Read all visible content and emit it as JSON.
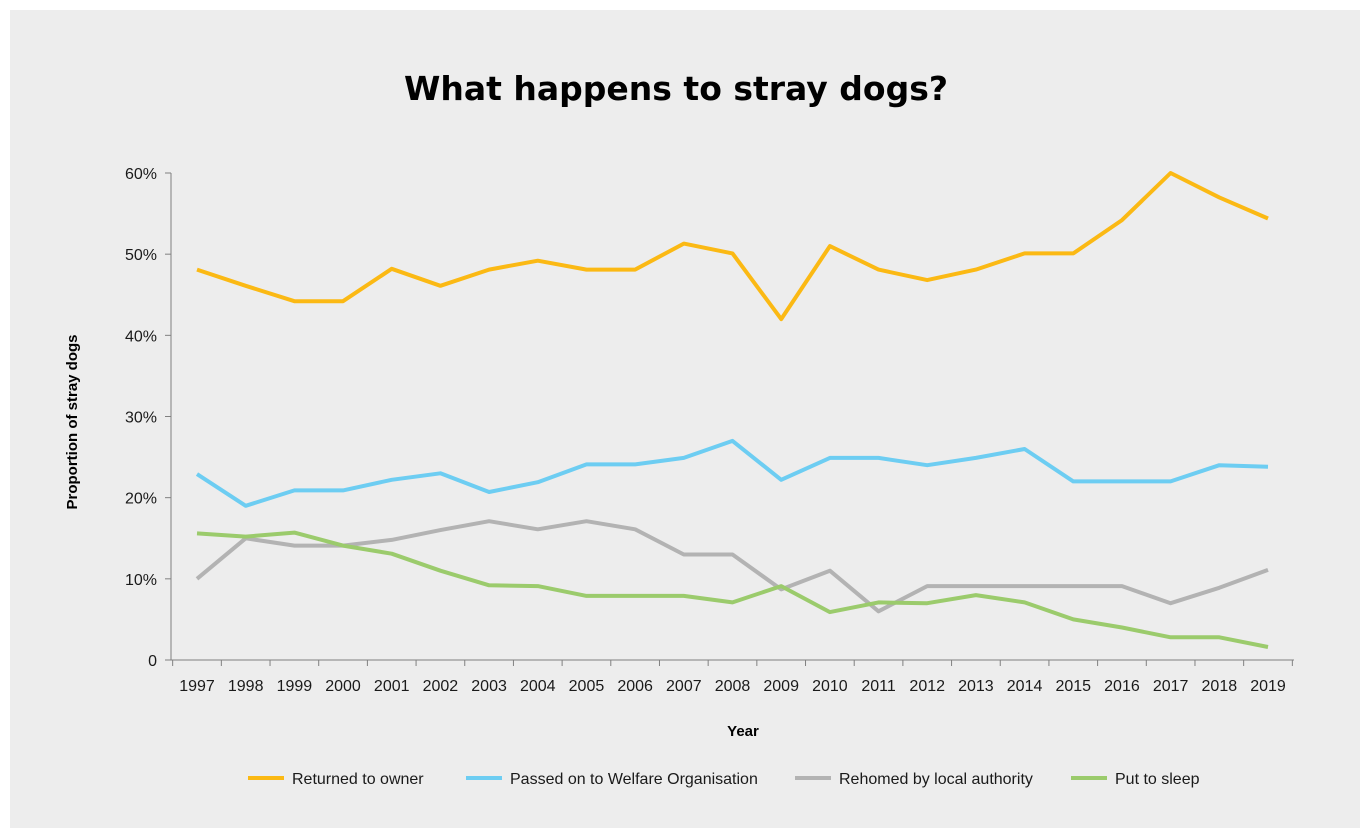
{
  "chart_data": {
    "type": "line",
    "title": "What happens to stray dogs?",
    "xlabel": "Year",
    "ylabel": "Proportion of stray dogs",
    "ylim": [
      0,
      60
    ],
    "yticks": [
      {
        "value": 0,
        "label": "0"
      },
      {
        "value": 10,
        "label": "10%"
      },
      {
        "value": 20,
        "label": "20%"
      },
      {
        "value": 30,
        "label": "30%"
      },
      {
        "value": 40,
        "label": "40%"
      },
      {
        "value": 50,
        "label": "50%"
      },
      {
        "value": 60,
        "label": "60%"
      }
    ],
    "categories": [
      "1997",
      "1998",
      "1999",
      "2000",
      "2001",
      "2002",
      "2003",
      "2004",
      "2005",
      "2006",
      "2007",
      "2008",
      "2009",
      "2010",
      "2011",
      "2012",
      "2013",
      "2014",
      "2015",
      "2016",
      "2017",
      "2018",
      "2019"
    ],
    "grid": false,
    "legend_position": "bottom",
    "series": [
      {
        "name": "Returned to owner",
        "color": "#fbb914",
        "values": [
          48.1,
          46.1,
          44.2,
          44.2,
          48.2,
          46.1,
          48.1,
          49.2,
          48.1,
          48.1,
          51.3,
          50.1,
          42.0,
          51.0,
          48.1,
          46.8,
          48.1,
          50.1,
          50.1,
          54.2,
          60.0,
          57.0,
          54.4
        ]
      },
      {
        "name": "Passed on to Welfare Organisation",
        "color": "#6dcdf2",
        "values": [
          22.9,
          19.0,
          20.9,
          20.9,
          22.2,
          23.0,
          20.7,
          21.9,
          24.1,
          24.1,
          24.9,
          27.0,
          22.2,
          24.9,
          24.9,
          24.0,
          24.9,
          26.0,
          22.0,
          22.0,
          22.0,
          24.0,
          23.8
        ]
      },
      {
        "name": "Rehomed by local authority",
        "color": "#b3b3b3",
        "values": [
          10.0,
          15.0,
          14.1,
          14.1,
          14.8,
          16.0,
          17.1,
          16.1,
          17.1,
          16.1,
          13.0,
          13.0,
          8.7,
          11.0,
          6.0,
          9.1,
          9.1,
          9.1,
          9.1,
          9.1,
          7.0,
          8.9,
          11.1
        ]
      },
      {
        "name": "Put to sleep",
        "color": "#9bcb6c",
        "values": [
          15.6,
          15.2,
          15.7,
          14.1,
          13.1,
          11.0,
          9.2,
          9.1,
          7.9,
          7.9,
          7.9,
          7.1,
          9.1,
          5.9,
          7.1,
          7.0,
          8.0,
          7.1,
          5.0,
          4.0,
          2.8,
          2.8,
          1.6
        ]
      }
    ]
  }
}
